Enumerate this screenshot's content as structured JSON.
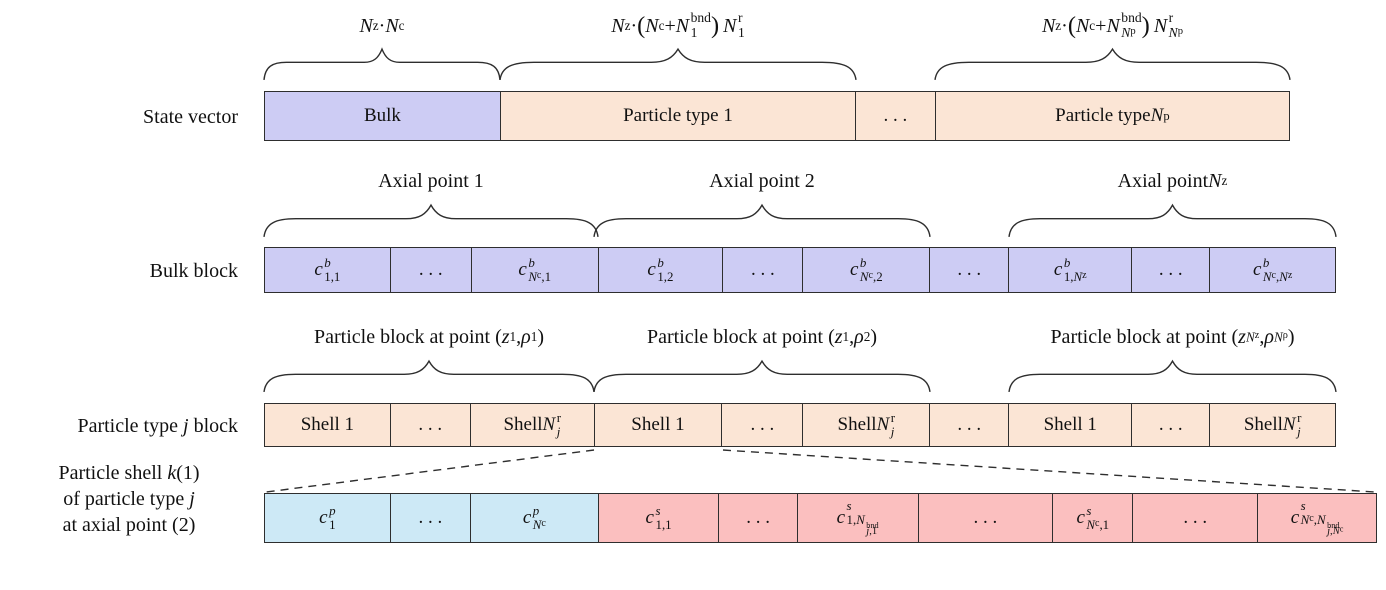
{
  "diagram": {
    "colors": {
      "bulk_fill": "#cdccf4",
      "particle_fill": "#fbe5d5",
      "particle_conc_fill": "#cde9f6",
      "surface_conc_fill": "#fbbfbf",
      "border": "#2e2e2e"
    },
    "left_labels": {
      "state_vector": "State vector",
      "bulk_block": "Bulk block",
      "particle_type_block_html": "Particle type <i>j</i> block",
      "shell_label_lines_html": [
        "Particle shell <i>k</i>(1)",
        "of particle type <i>j</i>",
        "at axial point (2)"
      ]
    },
    "state_vector_row": {
      "brace_labels_html": [
        "<i>N</i><sup>z</sup> &middot; <i>N</i><sup>c</sup>",
        "<i>N</i><sup>z</sup> &middot; <span class='pb'>(</span><i>N</i><sup>c</sup> + <i>N</i><span class='ss'><sup>bnd</sup><sub>1</sub></span><span class='pb'>)</span>&thinsp;<i>N</i><span class='ss'><sup>r</sup><sub>1</sub></span>",
        "<i>N</i><sup>z</sup> &middot; <span class='pb'>(</span><i>N</i><sup>c</sup> + <i>N</i><span class='ss'><sup>bnd</sup><sub><i>N</i><sup>p</sup></sub></span><span class='pb'>)</span>&thinsp;<i>N</i><span class='ss'><sup>r</sup><sub><i>N</i><sup>p</sup></sub></span>"
      ],
      "cells_html": [
        "Bulk",
        "Particle type 1",
        ". . .",
        "Particle type <i>N</i><sup>p</sup>"
      ]
    },
    "bulk_row": {
      "brace_labels_html": [
        "Axial point 1",
        "Axial point 2",
        "Axial point <i>N</i><sup>z</sup>"
      ],
      "cells_html": [
        "<i>c</i><span class='ss'><sup><i>b</i></sup><sub>1,1</sub></span>",
        ". . .",
        "<i>c</i><span class='ss'><sup><i>b</i></sup><sub><i>N</i><sup>c</sup>,1</sub></span>",
        "<i>c</i><span class='ss'><sup><i>b</i></sup><sub>1,2</sub></span>",
        ". . .",
        "<i>c</i><span class='ss'><sup><i>b</i></sup><sub><i>N</i><sup>c</sup>,2</sub></span>",
        ". . .",
        "<i>c</i><span class='ss'><sup><i>b</i></sup><sub>1,<i>N</i><sup>z</sup></sub></span>",
        ". . .",
        "<i>c</i><span class='ss'><sup><i>b</i></sup><sub><i>N</i><sup>c</sup>,<i>N</i><sup>z</sup></sub></span>"
      ]
    },
    "particle_row": {
      "brace_labels_html": [
        "Particle block at point (<i>z</i><sub>1</sub>, <i>&rho;</i><sub>1</sub>)",
        "Particle block at point (<i>z</i><sub>1</sub>, <i>&rho;</i><sub>2</sub>)",
        "Particle block at point (<i>z</i><sub><i>N</i><sup>z</sup></sub>, <i>&rho;</i><sub><i>N</i><sup>&rho;</sup></sub>)"
      ],
      "cells_html": [
        "Shell 1",
        ". . .",
        "Shell <i>N</i><span class='ss'><sup>r</sup><sub><i>j</i></sub></span>",
        "Shell 1",
        ". . .",
        "Shell <i>N</i><span class='ss'><sup>r</sup><sub><i>j</i></sub></span>",
        ". . .",
        "Shell 1",
        ". . .",
        "Shell <i>N</i><span class='ss'><sup>r</sup><sub><i>j</i></sub></span>"
      ]
    },
    "shell_row": {
      "cells_html": [
        "<i>c</i><span class='ss'><sup><i>p</i></sup><sub>1</sub></span>",
        ". . .",
        "<i>c</i><span class='ss'><sup><i>p</i></sup><sub><i>N</i><sup>c</sup></sub></span>",
        "<i>c</i><span class='ss'><sup><i>s</i></sup><sub>1,1</sub></span>",
        ". . .",
        "<i>c</i><span class='ss'><sup><i>s</i></sup><sub>1,<i>N</i><span class='ss'><sup>bnd</sup><sub><i>j</i>,1</sub></span></sub></span>",
        ". . .",
        "<i>c</i><span class='ss'><sup><i>s</i></sup><sub><i>N</i><sup>c</sup>,1</sub></span>",
        ". . .",
        "<i>c</i><span class='ss'><sup><i>s</i></sup><sub><i>N</i><sup>c</sup>,<i>N</i><span class='ss'><sup>bnd</sup><sub><i>j</i>,<i>N</i><sup>c</sup></sub></span></sub></span>"
      ]
    }
  }
}
